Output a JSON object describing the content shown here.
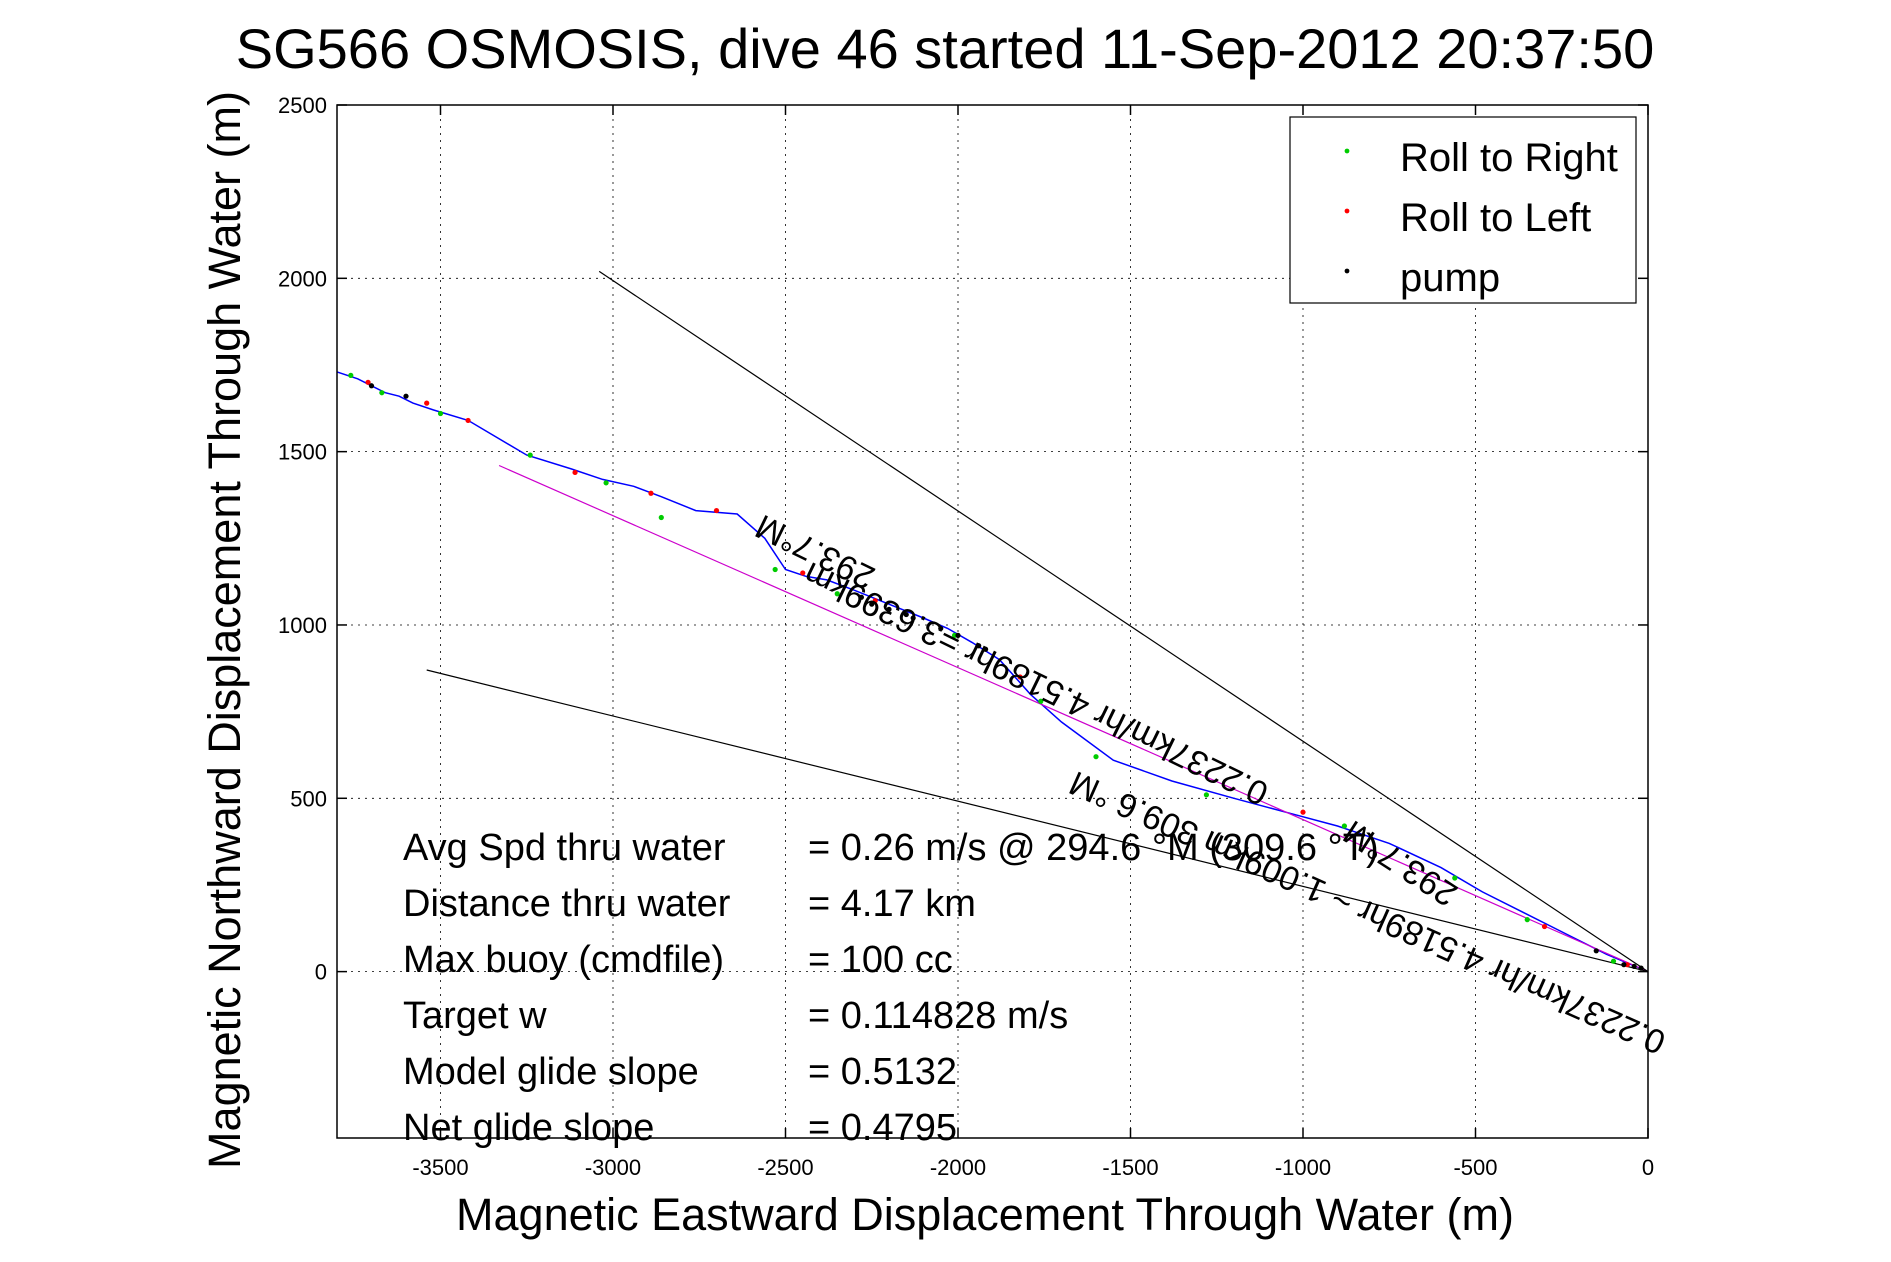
{
  "chart_data": {
    "type": "line",
    "title": "SG566 OSMOSIS, dive 46 started 11-Sep-2012 20:37:50",
    "xlabel": "Magnetic Eastward Displacement Through Water (m)",
    "ylabel": "Magnetic Northward Displacement Through Water (m)",
    "xlim": [
      -3800,
      0
    ],
    "ylim": [
      -480,
      2500
    ],
    "xticks": [
      -3500,
      -3000,
      -2500,
      -2000,
      -1500,
      -1000,
      -500,
      0
    ],
    "yticks": [
      0,
      500,
      1000,
      1500,
      2000,
      2500
    ],
    "grid": true,
    "legend_position": "top-right",
    "legend": [
      {
        "label": "Roll to Right",
        "color": "#00cc00"
      },
      {
        "label": "Roll to Left",
        "color": "#ff0000"
      },
      {
        "label": "pump",
        "color": "#000000"
      }
    ],
    "series": [
      {
        "type": "line",
        "color": "#0000ff",
        "x": [
          0,
          -120,
          -240,
          -360,
          -480,
          -600,
          -750,
          -900,
          -1050,
          -1200,
          -1380,
          -1550,
          -1700,
          -1790,
          -1880,
          -1960,
          -2030,
          -2100,
          -2200,
          -2300,
          -2380,
          -2440,
          -2500,
          -2560,
          -2640,
          -2760,
          -2860,
          -2940,
          -3030,
          -3120,
          -3250,
          -3420,
          -3520,
          -3580,
          -3620,
          -3660,
          -3700,
          -3740,
          -3800
        ],
        "y": [
          0,
          50,
          110,
          170,
          230,
          300,
          370,
          420,
          460,
          500,
          550,
          610,
          720,
          800,
          900,
          950,
          990,
          1020,
          1060,
          1100,
          1130,
          1140,
          1160,
          1250,
          1320,
          1330,
          1370,
          1400,
          1420,
          1450,
          1490,
          1590,
          1620,
          1640,
          1660,
          1670,
          1690,
          1710,
          1730
        ]
      },
      {
        "type": "line",
        "color": "#cc00cc",
        "x": [
          0,
          -3330
        ],
        "y": [
          0,
          1460
        ]
      },
      {
        "type": "line",
        "color": "#000000",
        "x": [
          0,
          -3040
        ],
        "y": [
          0,
          2020
        ]
      },
      {
        "type": "line",
        "color": "#000000",
        "x": [
          0,
          -3540
        ],
        "y": [
          0,
          870
        ]
      }
    ],
    "markers": {
      "roll_right": {
        "color": "#00cc00",
        "x": [
          -100,
          -350,
          -560,
          -880,
          -1280,
          -1600,
          -1760,
          -2010,
          -2350,
          -2530,
          -2860,
          -3020,
          -3240,
          -3500,
          -3670,
          -3760
        ],
        "y": [
          30,
          150,
          270,
          420,
          510,
          620,
          780,
          970,
          1090,
          1160,
          1310,
          1410,
          1490,
          1610,
          1670,
          1720
        ]
      },
      "roll_left": {
        "color": "#ff0000",
        "x": [
          -60,
          -300,
          -1000,
          -1820,
          -2240,
          -2450,
          -2700,
          -2890,
          -3110,
          -3420,
          -3540,
          -3710
        ],
        "y": [
          20,
          130,
          460,
          850,
          1070,
          1150,
          1330,
          1380,
          1440,
          1590,
          1640,
          1700
        ]
      },
      "pump": {
        "color": "#000000",
        "x": [
          -20,
          -40,
          -70,
          -150,
          -2130,
          -2150,
          -2200,
          -2250,
          -2280,
          -2000,
          -2050,
          -1940,
          -1920,
          -3700,
          -3600
        ],
        "y": [
          10,
          15,
          20,
          60,
          1020,
          1030,
          1045,
          1060,
          1080,
          970,
          990,
          940,
          930,
          1690,
          1660
        ]
      }
    },
    "annotations": [
      {
        "text": "293.7°M",
        "x": -2400,
        "y": 1240
      },
      {
        "text": "0.2237km/hr 4.5189hr =3.6399km",
        "x": -1760,
        "y": 860
      },
      {
        "text": "293.7°M",
        "x": -700,
        "y": 340
      },
      {
        "text": "0.2237km/hr 4.5189hr ~ 1.009km 309.6 °M",
        "x": -800,
        "y": 200
      }
    ]
  },
  "stats": [
    {
      "label": "Avg Spd thru water",
      "value": "=  0.26 m/s @ 294.6 °M (309.6 °T)"
    },
    {
      "label": "Distance thru water",
      "value": "=  4.17 km"
    },
    {
      "label": "Max buoy (cmdfile)",
      "value": "= 100 cc"
    },
    {
      "label": "Target w",
      "value": "= 0.114828 m/s"
    },
    {
      "label": "Model glide slope",
      "value": "= 0.5132"
    },
    {
      "label": "Net glide slope",
      "value": "= 0.4795"
    }
  ]
}
